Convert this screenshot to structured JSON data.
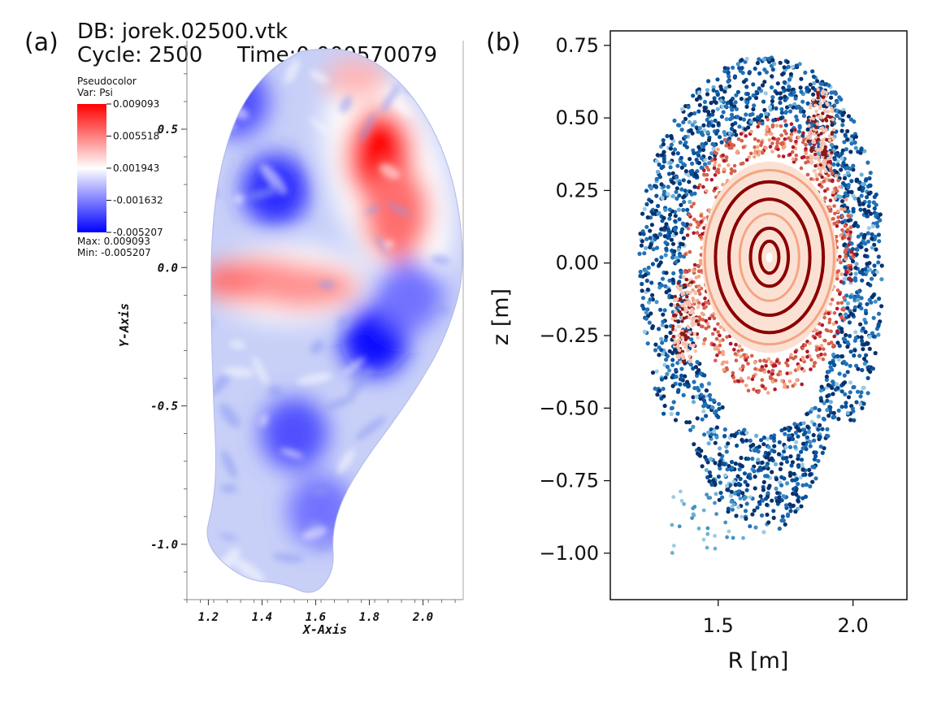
{
  "panel_a": {
    "label": "(a)",
    "db_line": "DB: jorek.02500.vtk",
    "cycle_label": "Cycle: 2500",
    "time_label": "Time:0.000570079",
    "legend": {
      "title": "Pseudocolor",
      "var": "Var: Psi",
      "ticks": [
        "0.009093",
        "0.005518",
        "0.001943",
        "-0.001632",
        "-0.005207"
      ],
      "max_label": "Max:  0.009093",
      "min_label": "Min: -0.005207"
    },
    "xlabel": "X-Axis",
    "ylabel": "Y-Axis"
  },
  "panel_b": {
    "label": "(b)",
    "xlabel": "R [m]",
    "ylabel": "z [m]"
  },
  "colors": {
    "blue": "#0000ff",
    "red": "#ff0000",
    "white": "#ffffff",
    "dark_blue": "#08306b",
    "mid_blue": "#2171b5",
    "dark_red": "#8b0000",
    "salmon": "#f4a582"
  },
  "chart_data": [
    {
      "id": "a",
      "type": "heatmap",
      "title": "DB: jorek.02500.vtk",
      "variable": "Psi",
      "xlabel": "X-Axis",
      "ylabel": "Y-Axis",
      "xlim": [
        1.12,
        2.15
      ],
      "ylim": [
        -1.2,
        0.82
      ],
      "x_ticks": [
        1.2,
        1.4,
        1.6,
        1.8,
        2.0
      ],
      "x_tick_labels": [
        "1.2",
        "1.4",
        "1.6",
        "1.8",
        "2.0"
      ],
      "y_ticks": [
        0.5,
        0.0,
        -0.5,
        -1.0
      ],
      "y_tick_labels": [
        "0.5",
        "0.0",
        "-0.5",
        "-1.0"
      ],
      "colorbar": {
        "min": -0.005207,
        "max": 0.009093,
        "colors": [
          "blue",
          "white",
          "red"
        ]
      },
      "blobs": [
        {
          "x": 1.84,
          "y": 0.4,
          "value": 0.009
        },
        {
          "x": 1.9,
          "y": 0.2,
          "value": 0.006
        },
        {
          "x": 1.75,
          "y": 0.68,
          "value": 0.004
        },
        {
          "x": 1.4,
          "y": -0.05,
          "value": 0.006
        },
        {
          "x": 1.55,
          "y": -0.07,
          "value": 0.005
        },
        {
          "x": 1.82,
          "y": -0.26,
          "value": -0.005
        },
        {
          "x": 1.45,
          "y": 0.28,
          "value": -0.004
        },
        {
          "x": 1.3,
          "y": 0.6,
          "value": -0.003
        },
        {
          "x": 1.52,
          "y": -0.6,
          "value": -0.003
        },
        {
          "x": 1.62,
          "y": -0.88,
          "value": -0.002
        },
        {
          "x": 1.95,
          "y": -0.1,
          "value": -0.002
        }
      ]
    },
    {
      "id": "b",
      "type": "scatter",
      "xlabel": "R [m]",
      "ylabel": "z [m]",
      "xlim": [
        1.1,
        2.2
      ],
      "ylim": [
        -1.16,
        0.8
      ],
      "x_ticks": [
        1.5,
        2.0
      ],
      "x_tick_labels": [
        "1.5",
        "2.0"
      ],
      "y_ticks": [
        0.75,
        0.5,
        0.25,
        0.0,
        -0.25,
        -0.5,
        -0.75,
        -1.0
      ],
      "y_tick_labels": [
        "0.75",
        "0.50",
        "0.25",
        "0.00",
        "−0.25",
        "−0.50",
        "−0.75",
        "−1.00"
      ],
      "center": {
        "R": 1.69,
        "z": 0.02
      },
      "closed_surfaces": [
        {
          "a": 0.035,
          "b": 0.055,
          "color": "dark_red"
        },
        {
          "a": 0.07,
          "b": 0.1,
          "color": "dark_red"
        },
        {
          "a": 0.11,
          "b": 0.15,
          "color": "salmon"
        },
        {
          "a": 0.15,
          "b": 0.2,
          "color": "dark_red"
        },
        {
          "a": 0.2,
          "b": 0.26,
          "color": "dark_red"
        },
        {
          "a": 0.24,
          "b": 0.3,
          "color": "salmon"
        }
      ],
      "islands": [
        {
          "R": 1.88,
          "z": 0.45,
          "color": "salmon"
        },
        {
          "R": 1.38,
          "z": -0.2,
          "color": "salmon"
        }
      ],
      "stochastic_region": {
        "R_range": [
          1.24,
          2.16
        ],
        "z_range": [
          -1.02,
          0.78
        ],
        "color": "dark_blue"
      }
    }
  ]
}
